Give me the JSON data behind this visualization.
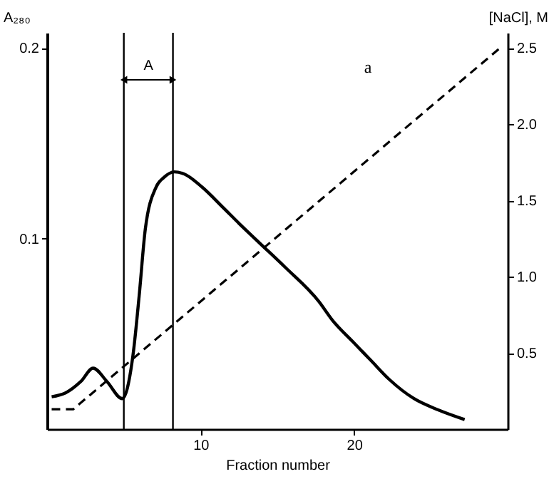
{
  "chart_data": {
    "type": "line",
    "xlabel": "Fraction number",
    "ylabel": "A₂₈₀",
    "y2label": "[NaCl], M",
    "annotations": [
      "a",
      "A"
    ],
    "xlim": [
      0,
      30
    ],
    "xticks": [
      10,
      20
    ],
    "ylim": [
      0,
      0.208
    ],
    "yticks": [
      0.1,
      0.2
    ],
    "y2lim": [
      0,
      2.6
    ],
    "y2ticks": [
      0.5,
      {
        "value": 1,
        "label": "1.0"
      },
      1.5,
      {
        "value": 2,
        "label": "2.0"
      },
      2.5
    ],
    "series": [
      {
        "color": "#000000",
        "line_style": "solid",
        "x": [
          0.3,
          1.2,
          2.2,
          3.0,
          3.9,
          4.9,
          5.6,
          6.0,
          6.4,
          7.1,
          7.6,
          8.3,
          8.9,
          10.1,
          11.5,
          12.5,
          13.8,
          15.5,
          17.7,
          18.6,
          19.9,
          21.1,
          22.3,
          23.9,
          25.5,
          27.2
        ],
        "values": [
          0.017,
          0.019,
          0.025,
          0.032,
          0.025,
          0.016,
          0.039,
          0.07,
          0.105,
          0.127,
          0.132,
          0.135,
          0.134,
          0.127,
          0.116,
          0.108,
          0.098,
          0.085,
          0.067,
          0.057,
          0.046,
          0.036,
          0.026,
          0.016,
          0.01,
          0.005
        ]
      },
      {
        "color": "#000000",
        "line_style": "dashed",
        "axis": "y2",
        "x": [
          0.3,
          1.7,
          29.5
        ],
        "values": [
          0.13,
          0.13,
          2.5
        ]
      }
    ],
    "ref_lines": [
      {
        "axis": "x",
        "value": 5
      },
      {
        "axis": "x",
        "value": 8.2
      }
    ],
    "grid": false
  }
}
